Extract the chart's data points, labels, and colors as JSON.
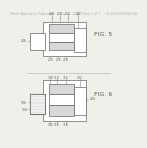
{
  "bg_color": "#f0f0eb",
  "header_text": "Patent Application Publication     May 22, 2012  Sheet 1 of 7     US 2012/0094449 A1",
  "header_fontsize": 2.2,
  "fig6_label": "FIG. 6",
  "fig5_label": "FIG. 5",
  "line_color": "#888888",
  "box_color": "#666666",
  "label_color": "#555555",
  "hatch_color": "#aaaaaa",
  "fill_light": "#d8d8d8",
  "fill_white": "#ffffff"
}
